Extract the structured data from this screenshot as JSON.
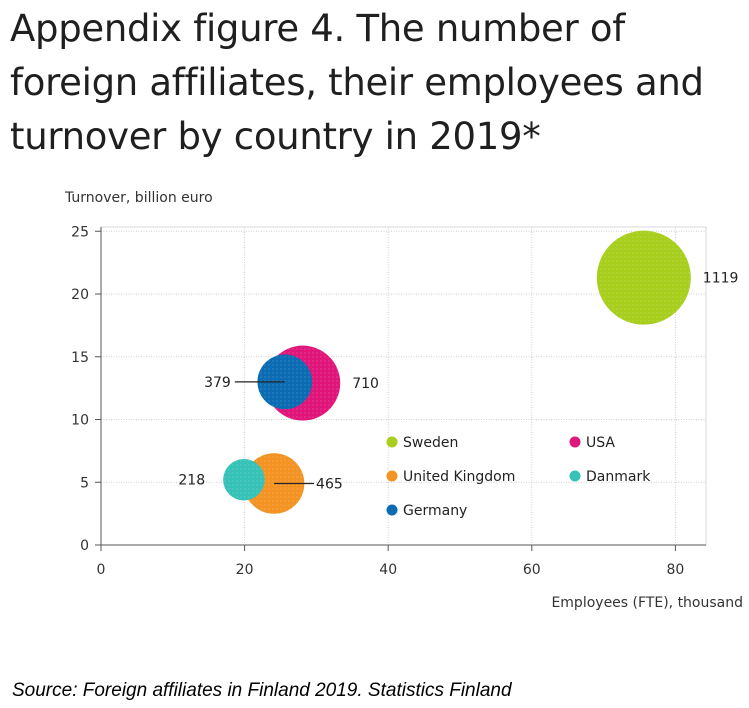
{
  "title": "Appendix figure 4. The number of foreign affiliates, their employees and turnover by country in 2019*",
  "source": "Source: Foreign affiliates in Finland 2019. Statistics Finland",
  "chart_data": {
    "type": "bubble",
    "ylabel": "Turnover, billion euro",
    "xlabel": "Employees (FTE), thousand",
    "xlim": [
      0,
      84
    ],
    "ylim": [
      0,
      25
    ],
    "xticks": [
      "0",
      "20",
      "40",
      "60",
      "80"
    ],
    "yticks": [
      "0",
      "5",
      "10",
      "15",
      "20",
      "25"
    ],
    "grid": true,
    "legend_position": "inside-lower-right",
    "series": [
      {
        "name": "Sweden",
        "x": 75.6,
        "y": 21.3,
        "size": 1119,
        "color": "#a8cf1e"
      },
      {
        "name": "USA",
        "x": 28.1,
        "y": 12.9,
        "size": 710,
        "color": "#e0167a"
      },
      {
        "name": "United Kingdom",
        "x": 24.1,
        "y": 4.9,
        "size": 465,
        "color": "#f39324"
      },
      {
        "name": "Germany",
        "x": 25.6,
        "y": 13.0,
        "size": 379,
        "color": "#0b6cb3"
      },
      {
        "name": "Danmark",
        "x": 19.9,
        "y": 5.2,
        "size": 218,
        "color": "#37c2b8"
      }
    ]
  }
}
